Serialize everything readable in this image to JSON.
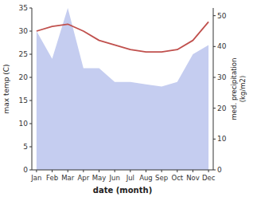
{
  "chart_data": {
    "type": "line",
    "xlabel": "date (month)",
    "ylabel": "max temp (C)",
    "y2label": "med. precipitation\n(kg/m2)",
    "categories": [
      "Jan",
      "Feb",
      "Mar",
      "Apr",
      "May",
      "Jun",
      "Jul",
      "Aug",
      "Sep",
      "Oct",
      "Nov",
      "Dec"
    ],
    "series": [
      {
        "type": "area",
        "color": "#c5cdf0",
        "values": [
          30,
          24,
          35,
          22,
          22,
          19,
          19,
          18.5,
          18,
          19,
          25,
          27
        ]
      },
      {
        "type": "line",
        "color": "#c0504d",
        "values": [
          30,
          31,
          31.5,
          30,
          28,
          27,
          26,
          25.5,
          25.5,
          26,
          28,
          32
        ]
      }
    ],
    "ylim": [
      0,
      35
    ],
    "yticks": [
      0,
      5,
      10,
      15,
      20,
      25,
      30,
      35
    ],
    "y2lim": [
      0,
      52.5
    ],
    "y2ticks": [
      0,
      10,
      20,
      30,
      40,
      50
    ],
    "grid": false
  }
}
